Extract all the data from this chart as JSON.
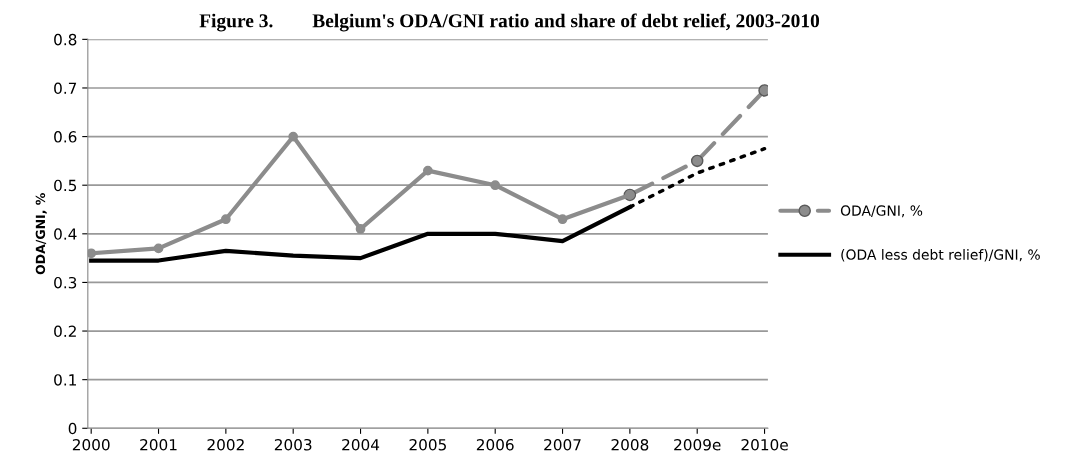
{
  "chart_data": {
    "type": "line",
    "title": "Figure 3.        Belgium's ODA/GNI ratio and share of debt relief, 2003-2010",
    "ylabel": "ODA/GNI, %",
    "categories": [
      "2000",
      "2001",
      "2002",
      "2003",
      "2004",
      "2005",
      "2006",
      "2007",
      "2008",
      "2009e",
      "2010e"
    ],
    "series": [
      {
        "color": "#8c8c8c",
        "marker": "circle",
        "line_style": "solid",
        "values": [
          0.36,
          0.37,
          0.43,
          0.6,
          0.41,
          0.53,
          0.5,
          0.43,
          0.48,
          null,
          null
        ]
      },
      {
        "name": "ODA/GNI, %",
        "color": "#8c8c8c",
        "marker": "circle",
        "line_style": "dashed",
        "values": [
          null,
          null,
          null,
          null,
          null,
          null,
          null,
          null,
          0.48,
          0.55,
          0.695
        ]
      },
      {
        "name": "(ODA less debt relief)/GNI, %",
        "color": "#000000",
        "marker": "none",
        "line_style": "solid",
        "values": [
          0.345,
          0.345,
          0.365,
          0.355,
          0.35,
          0.4,
          0.4,
          0.385,
          0.455,
          null,
          null
        ]
      },
      {
        "color": "#000000",
        "marker": "none",
        "line_style": "dotted",
        "values": [
          null,
          null,
          null,
          null,
          null,
          null,
          null,
          null,
          0.455,
          0.525,
          0.575
        ]
      }
    ],
    "ylim": [
      0,
      0.8
    ],
    "yticks": [
      0,
      0.1,
      0.2,
      0.3,
      0.4,
      0.5,
      0.6,
      0.7,
      0.8
    ],
    "grid": "y",
    "legend": "right"
  }
}
